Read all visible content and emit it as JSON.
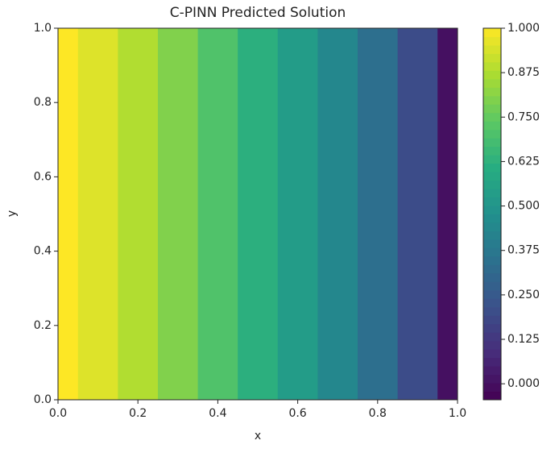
{
  "chart_data": {
    "type": "contour",
    "title": "C-PINN Predicted Solution",
    "x_label": "x",
    "y_label": "y",
    "colormap": "viridis",
    "x": [
      0.0,
      0.1,
      0.2,
      0.3,
      0.4,
      0.5,
      0.6,
      0.7,
      0.8,
      0.9,
      1.0
    ],
    "values": [
      1.0,
      0.95,
      0.88,
      0.8,
      0.71,
      0.62,
      0.53,
      0.44,
      0.34,
      0.2,
      0.0
    ],
    "xlim": [
      0.0,
      1.0
    ],
    "ylim": [
      0.0,
      1.0
    ],
    "xticks": [
      {
        "value": 0,
        "label": "0.0"
      },
      0.2,
      0.4,
      0.6,
      0.8,
      {
        "value": 1,
        "label": "1.0"
      }
    ],
    "yticks": [
      {
        "value": 0,
        "label": "0.0"
      },
      0.2,
      0.4,
      0.6,
      0.8,
      {
        "value": 1,
        "label": "1.0"
      }
    ],
    "clim": [
      -0.045,
      1.0
    ],
    "cticks": [
      {
        "value": 0,
        "label": "0.000"
      },
      0.125,
      {
        "value": 0.25,
        "label": "0.250"
      },
      0.375,
      {
        "value": 0.5,
        "label": "0.500"
      },
      0.625,
      {
        "value": 0.75,
        "label": "0.750"
      },
      0.875,
      {
        "value": 1,
        "label": "1.000"
      }
    ]
  }
}
